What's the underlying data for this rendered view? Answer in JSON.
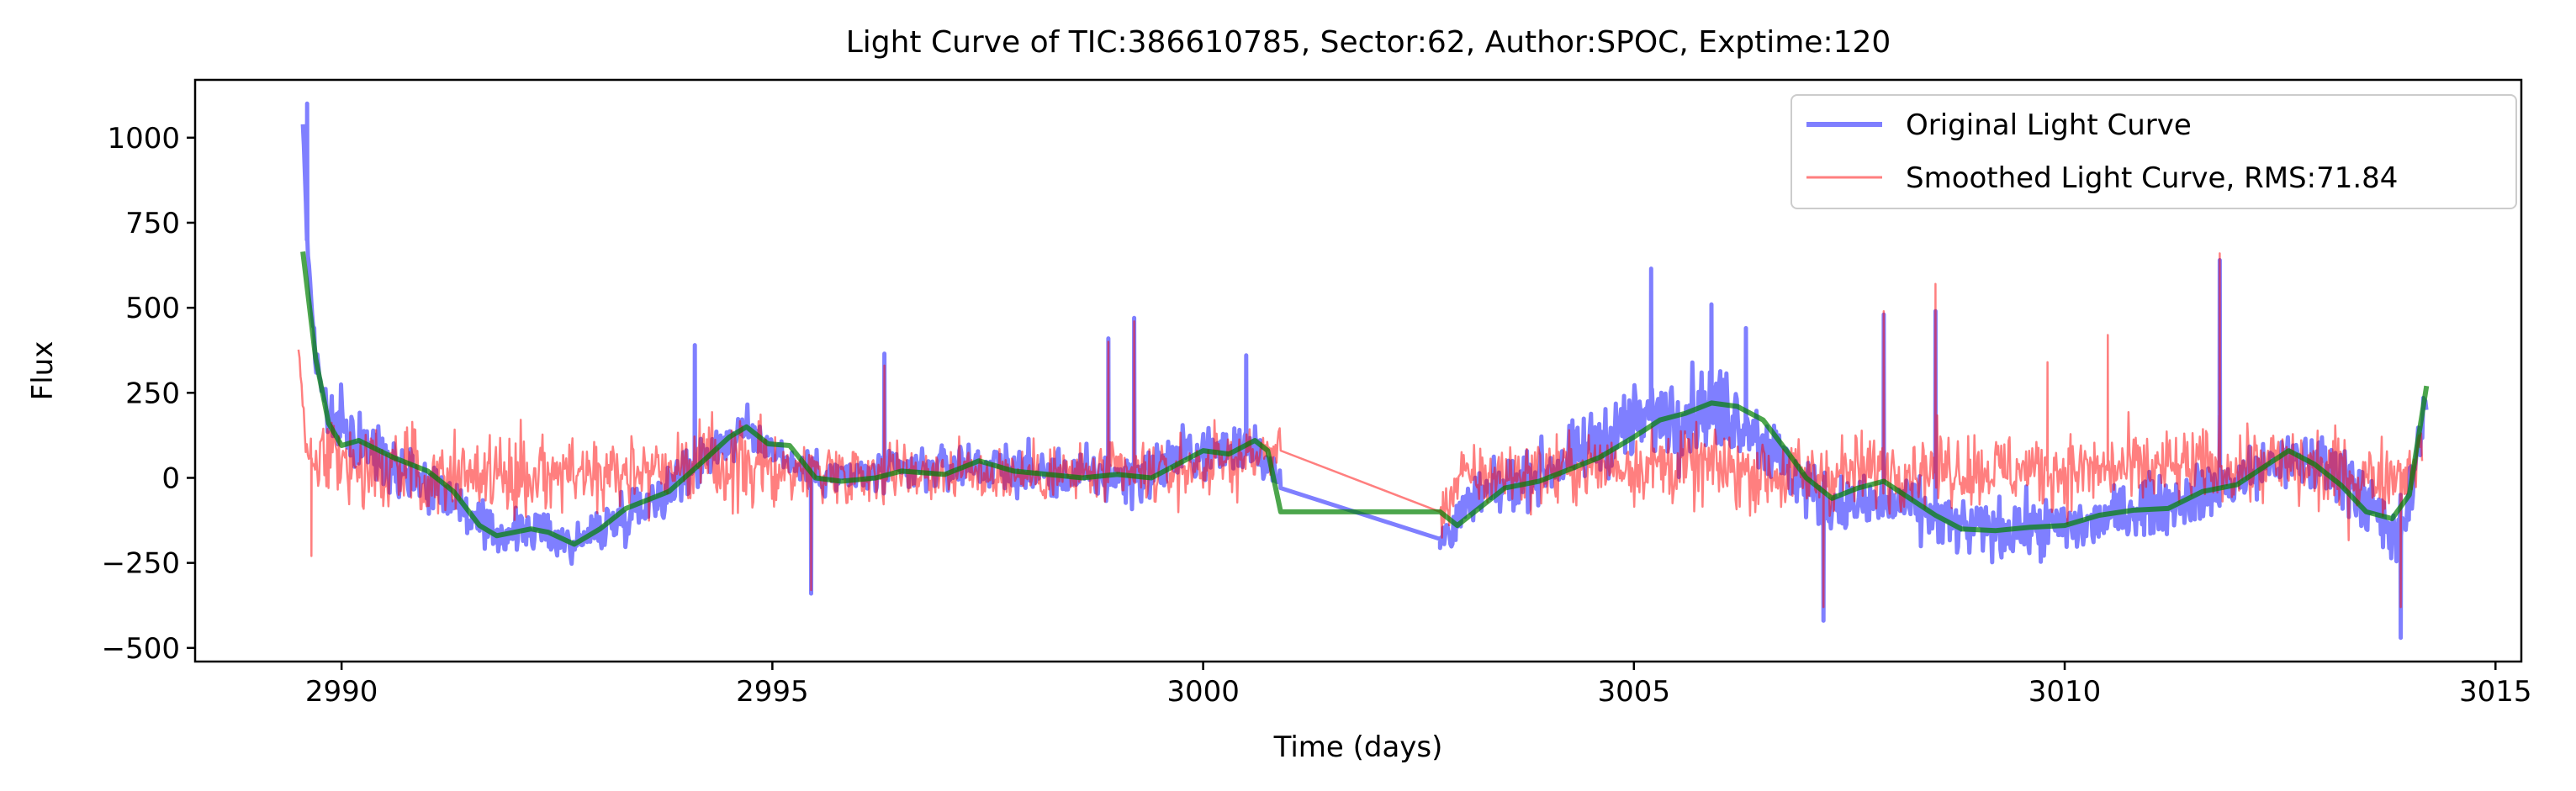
{
  "chart_data": {
    "type": "line",
    "title": "Light Curve of TIC:386610785, Sector:62, Author:SPOC, Exptime:120",
    "xlabel": "Time (days)",
    "ylabel": "Flux",
    "xlim": [
      2988.3,
      3015.3
    ],
    "ylim": [
      -540,
      1170
    ],
    "xticks": [
      2990,
      2995,
      3000,
      3005,
      3010,
      3015
    ],
    "xtick_labels": [
      "2990",
      "2995",
      "3000",
      "3005",
      "3010",
      "3015"
    ],
    "yticks": [
      -500,
      -250,
      0,
      250,
      500,
      750,
      1000
    ],
    "ytick_labels": [
      "−500",
      "−250",
      "0",
      "250",
      "500",
      "750",
      "1000"
    ],
    "grid": false,
    "legend_position": "upper right",
    "data_gap": [
      3000.9,
      3002.75
    ],
    "series": [
      {
        "name": "Original Light Curve",
        "color": "#0000ff",
        "opacity": 0.5,
        "kind": "noisy",
        "baseline": [
          [
            2989.55,
            1050
          ],
          [
            2989.6,
            700
          ],
          [
            2989.7,
            350
          ],
          [
            2989.85,
            180
          ],
          [
            2990.2,
            100
          ],
          [
            2990.8,
            20
          ],
          [
            2991.3,
            -60
          ],
          [
            2991.7,
            -170
          ],
          [
            2992.2,
            -150
          ],
          [
            2992.7,
            -195
          ],
          [
            2993.2,
            -120
          ],
          [
            2993.8,
            -30
          ],
          [
            2994.3,
            80
          ],
          [
            2994.7,
            140
          ],
          [
            2994.95,
            100
          ],
          [
            2995.3,
            30
          ],
          [
            2995.8,
            0
          ],
          [
            2996.5,
            20
          ],
          [
            2997.3,
            40
          ],
          [
            2998.2,
            10
          ],
          [
            2999.2,
            0
          ],
          [
            2999.8,
            70
          ],
          [
            3000.3,
            80
          ],
          [
            3000.6,
            110
          ],
          [
            3000.9,
            -30
          ],
          [
            3002.75,
            -180
          ],
          [
            3002.85,
            -150
          ],
          [
            3003.2,
            -60
          ],
          [
            3003.8,
            0
          ],
          [
            3004.3,
            60
          ],
          [
            3004.8,
            140
          ],
          [
            3005.4,
            190
          ],
          [
            3005.9,
            210
          ],
          [
            3006.3,
            170
          ],
          [
            3006.8,
            20
          ],
          [
            3007.2,
            -70
          ],
          [
            3007.6,
            -80
          ],
          [
            3008.2,
            -80
          ],
          [
            3008.8,
            -150
          ],
          [
            3009.5,
            -150
          ],
          [
            3010.3,
            -140
          ],
          [
            3010.8,
            -90
          ],
          [
            3011.4,
            -60
          ],
          [
            3011.9,
            -20
          ],
          [
            3012.4,
            40
          ],
          [
            3012.9,
            50
          ],
          [
            3013.4,
            -20
          ],
          [
            3013.7,
            -150
          ],
          [
            3013.9,
            -170
          ],
          [
            3014.05,
            0
          ],
          [
            3014.2,
            260
          ]
        ],
        "noise": [
          [
            2989.55,
            30
          ],
          [
            2989.8,
            150
          ],
          [
            2991.0,
            130
          ],
          [
            2992.5,
            100
          ],
          [
            2994.0,
            150
          ],
          [
            2995.0,
            100
          ],
          [
            2996.0,
            110
          ],
          [
            2998.0,
            130
          ],
          [
            3000.0,
            140
          ],
          [
            3000.9,
            120
          ],
          [
            3002.75,
            120
          ],
          [
            3004.0,
            140
          ],
          [
            3005.5,
            230
          ],
          [
            3006.5,
            190
          ],
          [
            3007.6,
            140
          ],
          [
            3009.0,
            150
          ],
          [
            3011.0,
            150
          ],
          [
            3012.5,
            150
          ],
          [
            3013.8,
            220
          ],
          [
            3014.2,
            100
          ]
        ],
        "spikes": [
          [
            2989.6,
            1100
          ],
          [
            2994.1,
            390
          ],
          [
            2995.45,
            -340
          ],
          [
            2996.3,
            365
          ],
          [
            2998.9,
            410
          ],
          [
            2999.2,
            470
          ],
          [
            3000.5,
            360
          ],
          [
            3005.2,
            615
          ],
          [
            3005.9,
            510
          ],
          [
            3006.3,
            440
          ],
          [
            3007.2,
            -420
          ],
          [
            3007.9,
            480
          ],
          [
            3008.5,
            490
          ],
          [
            3011.8,
            640
          ],
          [
            3013.9,
            -470
          ]
        ]
      },
      {
        "name": "Smoothed Light Curve, RMS:71.84",
        "color": "#ff0000",
        "opacity": 0.5,
        "kind": "noisy",
        "baseline": [
          [
            2989.5,
            380
          ],
          [
            2989.6,
            60
          ],
          [
            2990.2,
            30
          ],
          [
            2991.0,
            20
          ],
          [
            2992.0,
            10
          ],
          [
            2993.0,
            20
          ],
          [
            2994.0,
            40
          ],
          [
            2994.9,
            30
          ],
          [
            2995.3,
            20
          ],
          [
            2996.5,
            20
          ],
          [
            2998.0,
            10
          ],
          [
            2999.5,
            10
          ],
          [
            3000.9,
            80
          ],
          [
            3002.75,
            -100
          ],
          [
            3003.0,
            0
          ],
          [
            3004.0,
            20
          ],
          [
            3005.0,
            40
          ],
          [
            3006.0,
            30
          ],
          [
            3007.0,
            0
          ],
          [
            3007.6,
            20
          ],
          [
            3008.5,
            30
          ],
          [
            3010.0,
            20
          ],
          [
            3011.5,
            30
          ],
          [
            3012.5,
            40
          ],
          [
            3013.5,
            0
          ],
          [
            3014.0,
            20
          ],
          [
            3014.15,
            100
          ]
        ],
        "noise": [
          [
            2989.5,
            30
          ],
          [
            2989.8,
            200
          ],
          [
            2991.0,
            200
          ],
          [
            2993.0,
            210
          ],
          [
            2994.9,
            220
          ],
          [
            2995.3,
            150
          ],
          [
            2998.0,
            150
          ],
          [
            3000.9,
            160
          ],
          [
            3002.75,
            150
          ],
          [
            3004.0,
            180
          ],
          [
            3006.0,
            200
          ],
          [
            3008.5,
            190
          ],
          [
            3011.0,
            200
          ],
          [
            3013.5,
            220
          ],
          [
            3014.15,
            150
          ]
        ],
        "spikes": [
          [
            2989.5,
            440
          ],
          [
            2989.65,
            -230
          ],
          [
            2995.45,
            -330
          ],
          [
            2996.3,
            330
          ],
          [
            2998.9,
            400
          ],
          [
            2999.2,
            460
          ],
          [
            3007.2,
            -380
          ],
          [
            3007.9,
            490
          ],
          [
            3008.5,
            570
          ],
          [
            3009.8,
            340
          ],
          [
            3010.5,
            420
          ],
          [
            3011.8,
            660
          ],
          [
            3013.9,
            -380
          ]
        ]
      },
      {
        "name": "",
        "color": "#008000",
        "opacity": 0.7,
        "kind": "smooth",
        "points": [
          [
            2989.55,
            665
          ],
          [
            2989.7,
            350
          ],
          [
            2989.85,
            160
          ],
          [
            2990.0,
            95
          ],
          [
            2990.2,
            110
          ],
          [
            2990.6,
            60
          ],
          [
            2991.0,
            20
          ],
          [
            2991.3,
            -40
          ],
          [
            2991.6,
            -140
          ],
          [
            2991.8,
            -170
          ],
          [
            2992.2,
            -150
          ],
          [
            2992.4,
            -160
          ],
          [
            2992.7,
            -195
          ],
          [
            2993.0,
            -150
          ],
          [
            2993.3,
            -90
          ],
          [
            2993.8,
            -40
          ],
          [
            2994.2,
            50
          ],
          [
            2994.5,
            120
          ],
          [
            2994.7,
            150
          ],
          [
            2994.95,
            100
          ],
          [
            2995.2,
            95
          ],
          [
            2995.5,
            0
          ],
          [
            2995.8,
            -10
          ],
          [
            2996.2,
            0
          ],
          [
            2996.5,
            20
          ],
          [
            2997.0,
            10
          ],
          [
            2997.4,
            50
          ],
          [
            2997.8,
            20
          ],
          [
            2998.2,
            10
          ],
          [
            2998.6,
            0
          ],
          [
            2999.0,
            10
          ],
          [
            2999.4,
            0
          ],
          [
            2999.7,
            40
          ],
          [
            3000.0,
            80
          ],
          [
            3000.3,
            70
          ],
          [
            3000.6,
            110
          ],
          [
            3000.75,
            80
          ],
          [
            3000.9,
            -100
          ],
          [
            3002.75,
            -100
          ],
          [
            3002.95,
            -140
          ],
          [
            3003.2,
            -90
          ],
          [
            3003.5,
            -30
          ],
          [
            3003.9,
            -10
          ],
          [
            3004.2,
            20
          ],
          [
            3004.6,
            60
          ],
          [
            3005.0,
            120
          ],
          [
            3005.3,
            170
          ],
          [
            3005.6,
            190
          ],
          [
            3005.9,
            220
          ],
          [
            3006.2,
            210
          ],
          [
            3006.5,
            170
          ],
          [
            3006.8,
            70
          ],
          [
            3007.0,
            0
          ],
          [
            3007.3,
            -60
          ],
          [
            3007.6,
            -30
          ],
          [
            3007.9,
            -10
          ],
          [
            3008.2,
            -60
          ],
          [
            3008.5,
            -110
          ],
          [
            3008.8,
            -150
          ],
          [
            3009.2,
            -155
          ],
          [
            3009.6,
            -145
          ],
          [
            3010.0,
            -140
          ],
          [
            3010.4,
            -110
          ],
          [
            3010.8,
            -95
          ],
          [
            3011.2,
            -90
          ],
          [
            3011.6,
            -40
          ],
          [
            3012.0,
            -20
          ],
          [
            3012.3,
            30
          ],
          [
            3012.6,
            80
          ],
          [
            3012.9,
            40
          ],
          [
            3013.2,
            -20
          ],
          [
            3013.5,
            -100
          ],
          [
            3013.8,
            -120
          ],
          [
            3014.0,
            -50
          ],
          [
            3014.2,
            270
          ]
        ]
      }
    ]
  }
}
